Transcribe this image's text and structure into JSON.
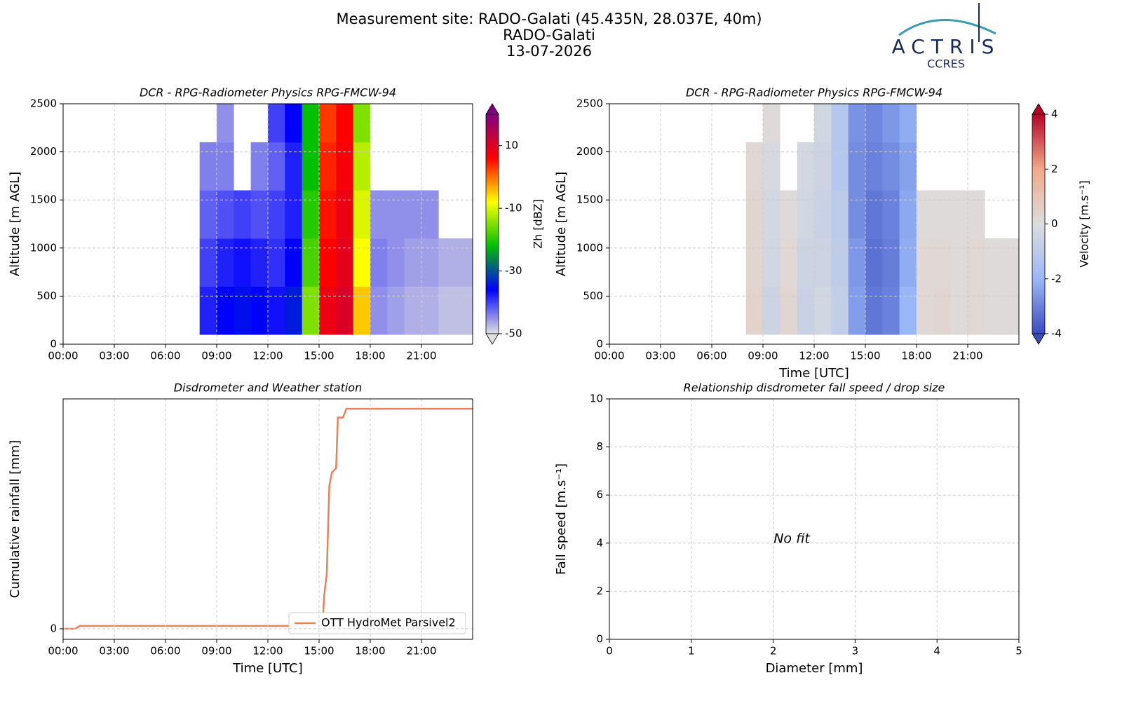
{
  "header": {
    "title_lines": [
      "Measurement site: RADO-Galati (45.435N, 28.037E, 40m)",
      "RADO-Galati",
      "13-07-2026"
    ],
    "logo": [
      "ACTRIS",
      "CCRES"
    ]
  },
  "chart_data": [
    {
      "type": "heatmap",
      "title": "DCR - RPG-Radiometer Physics RPG-FMCW-94",
      "ylabel": "Altitude [m AGL]",
      "xlim": [
        0,
        24
      ],
      "xticks": [
        {
          "value": 0,
          "label": "00:00"
        },
        {
          "value": 3,
          "label": "03:00"
        },
        {
          "value": 6,
          "label": "06:00"
        },
        {
          "value": 9,
          "label": "09:00"
        },
        {
          "value": 12,
          "label": "12:00"
        },
        {
          "value": 15,
          "label": "15:00"
        },
        {
          "value": 18,
          "label": "18:00"
        },
        {
          "value": 21,
          "label": "21:00"
        }
      ],
      "ylim": [
        0,
        2500
      ],
      "yticks": [
        0,
        500,
        1000,
        1500,
        2000,
        2500
      ],
      "grid": true,
      "x_bins": [
        0,
        1,
        2,
        3,
        4,
        5,
        6,
        7,
        8,
        9,
        10,
        11,
        12,
        13,
        14,
        15,
        16,
        17,
        18,
        19,
        20,
        21,
        22,
        23,
        24
      ],
      "y_bins": [
        100,
        600,
        1100,
        1600,
        2100,
        2500
      ],
      "z": [
        [
          null,
          null,
          null,
          null,
          null,
          null,
          null,
          null,
          -38,
          -36,
          -35,
          -36,
          -37,
          -34,
          -15,
          8,
          10,
          -5,
          -45,
          -46,
          -47,
          -47,
          -48,
          -48
        ],
        [
          null,
          null,
          null,
          null,
          null,
          null,
          null,
          null,
          -40,
          -38,
          -37,
          -38,
          -39,
          -36,
          -18,
          6,
          9,
          -8,
          -44,
          -45,
          -46,
          -46,
          -47,
          -47
        ],
        [
          null,
          null,
          null,
          null,
          null,
          null,
          null,
          null,
          -42,
          -41,
          -40,
          -41,
          -40,
          -38,
          -20,
          5,
          8,
          -10,
          -45,
          -45,
          -45,
          -45,
          null,
          null
        ],
        [
          null,
          null,
          null,
          null,
          null,
          null,
          null,
          null,
          -44,
          -44,
          null,
          -44,
          -42,
          -38,
          -22,
          4,
          7,
          -12,
          null,
          null,
          null,
          null,
          null,
          null
        ],
        [
          null,
          null,
          null,
          null,
          null,
          null,
          null,
          null,
          null,
          -45,
          null,
          null,
          -40,
          -36,
          -22,
          3,
          6,
          -15,
          null,
          null,
          null,
          null,
          null,
          null
        ]
      ],
      "colorbar": {
        "label": "Zh [dBZ]",
        "clim": [
          -50,
          20
        ],
        "ticks": [
          -50,
          -30,
          -10,
          10
        ],
        "colors": [
          "#e0e0e0",
          "#0000ff",
          "#00c000",
          "#ffff00",
          "#ff0000",
          "#800080"
        ]
      }
    },
    {
      "type": "heatmap",
      "title": "DCR - RPG-Radiometer Physics RPG-FMCW-94",
      "ylabel": "Altitude [m AGL]",
      "xlabel": "Time [UTC]",
      "xlim": [
        0,
        24
      ],
      "xticks": [
        {
          "value": 0,
          "label": "00:00"
        },
        {
          "value": 3,
          "label": "03:00"
        },
        {
          "value": 6,
          "label": "06:00"
        },
        {
          "value": 9,
          "label": "09:00"
        },
        {
          "value": 12,
          "label": "12:00"
        },
        {
          "value": 15,
          "label": "15:00"
        },
        {
          "value": 18,
          "label": "18:00"
        },
        {
          "value": 21,
          "label": "21:00"
        }
      ],
      "ylim": [
        0,
        2500
      ],
      "yticks": [
        0,
        500,
        1000,
        1500,
        2000,
        2500
      ],
      "grid": true,
      "x_bins": [
        0,
        1,
        2,
        3,
        4,
        5,
        6,
        7,
        8,
        9,
        10,
        11,
        12,
        13,
        14,
        15,
        16,
        17,
        18,
        19,
        20,
        21,
        22,
        23,
        24
      ],
      "y_bins": [
        100,
        600,
        1100,
        1600,
        2100,
        2500
      ],
      "z": [
        [
          null,
          null,
          null,
          null,
          null,
          null,
          null,
          null,
          0.4,
          -0.5,
          0.3,
          -0.6,
          -0.4,
          -0.8,
          -2.5,
          -3.2,
          -3,
          -2,
          0.2,
          0.3,
          0.1,
          0.2,
          0.1,
          0.1
        ],
        [
          null,
          null,
          null,
          null,
          null,
          null,
          null,
          null,
          0.3,
          -0.4,
          0.2,
          -0.5,
          -0.5,
          -0.9,
          -2.6,
          -3.3,
          -3.1,
          -2.2,
          0.2,
          0.2,
          0.1,
          0.2,
          0.1,
          0.1
        ],
        [
          null,
          null,
          null,
          null,
          null,
          null,
          null,
          null,
          0.3,
          -0.3,
          0.1,
          -0.4,
          -0.6,
          -1,
          -2.8,
          -3.2,
          -3,
          -2.3,
          0.1,
          0.1,
          0.1,
          0.1,
          null,
          null
        ],
        [
          null,
          null,
          null,
          null,
          null,
          null,
          null,
          null,
          0.2,
          -0.2,
          null,
          -0.3,
          -0.5,
          -1.2,
          -2.8,
          -3,
          -2.8,
          -2.4,
          null,
          null,
          null,
          null,
          null,
          null
        ],
        [
          null,
          null,
          null,
          null,
          null,
          null,
          null,
          null,
          null,
          0.1,
          null,
          null,
          -0.4,
          -1.2,
          -2.7,
          -2.9,
          -2.6,
          -2.2,
          null,
          null,
          null,
          null,
          null,
          null
        ]
      ],
      "colorbar": {
        "label": "Velocity [m.s⁻¹]",
        "clim": [
          -4,
          4
        ],
        "ticks": [
          -4,
          -2,
          0,
          2,
          4
        ],
        "colors": [
          "#3b4cc0",
          "#9ab8f7",
          "#dddddd",
          "#f2a98a",
          "#b40426"
        ]
      }
    },
    {
      "type": "line",
      "title": "Disdrometer and Weather station",
      "ylabel": "Cumulative rainfall [mm]",
      "xlabel": "Time [UTC]",
      "xlim": [
        0,
        24
      ],
      "xticks": [
        {
          "value": 0,
          "label": "00:00"
        },
        {
          "value": 3,
          "label": "03:00"
        },
        {
          "value": 6,
          "label": "06:00"
        },
        {
          "value": 9,
          "label": "09:00"
        },
        {
          "value": 12,
          "label": "12:00"
        },
        {
          "value": 15,
          "label": "15:00"
        },
        {
          "value": 18,
          "label": "18:00"
        },
        {
          "value": 21,
          "label": "21:00"
        }
      ],
      "ylim": [
        -0.48,
        10.45
      ],
      "yticks": [
        0
      ],
      "grid": true,
      "legend": "lower right",
      "series": [
        {
          "name": "OTT HydroMet Parsivel2",
          "color": "#e8825d",
          "x": [
            0,
            0.7,
            1,
            15.2,
            15.3,
            15.45,
            15.6,
            15.75,
            16,
            16.1,
            16.4,
            16.6,
            24
          ],
          "values": [
            0,
            0,
            0.13,
            0.13,
            1.5,
            2.5,
            6.5,
            7.1,
            7.3,
            9.6,
            9.6,
            10,
            10
          ]
        }
      ]
    },
    {
      "type": "scatter",
      "title": "Relationship disdrometer fall speed / drop size",
      "ylabel": "Fall speed [m.s⁻¹]",
      "xlabel": "Diameter [mm]",
      "xlim": [
        0,
        5
      ],
      "xticks": [
        0,
        1,
        2,
        3,
        4,
        5
      ],
      "ylim": [
        0,
        10
      ],
      "yticks": [
        0,
        2,
        4,
        6,
        8,
        10
      ],
      "grid": true,
      "annotation": "No fit"
    }
  ]
}
